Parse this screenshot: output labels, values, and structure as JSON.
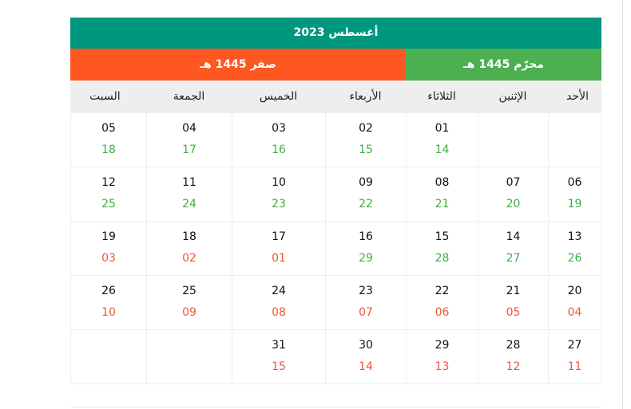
{
  "colors": {
    "title_bg": "#00977f",
    "muharram_bg": "#4caf50",
    "safar_bg": "#ff5722",
    "hijri_green": "#3fae3f",
    "hijri_red": "#e8583a"
  },
  "title": "أغسطس 2023",
  "months": [
    {
      "label": "محرّم 1445 هـ",
      "color": "green"
    },
    {
      "label": "صفر 1445 هـ",
      "color": "red"
    }
  ],
  "weekdays": [
    "الأحد",
    "الإثنين",
    "الثلاثاء",
    "الأربعاء",
    "الخميس",
    "الجمعة",
    "السبت"
  ],
  "weeks": [
    [
      null,
      null,
      {
        "g": "01",
        "h": "14",
        "c": "green"
      },
      {
        "g": "02",
        "h": "15",
        "c": "green"
      },
      {
        "g": "03",
        "h": "16",
        "c": "green"
      },
      {
        "g": "04",
        "h": "17",
        "c": "green"
      },
      {
        "g": "05",
        "h": "18",
        "c": "green"
      }
    ],
    [
      {
        "g": "06",
        "h": "19",
        "c": "green"
      },
      {
        "g": "07",
        "h": "20",
        "c": "green"
      },
      {
        "g": "08",
        "h": "21",
        "c": "green"
      },
      {
        "g": "09",
        "h": "22",
        "c": "green"
      },
      {
        "g": "10",
        "h": "23",
        "c": "green"
      },
      {
        "g": "11",
        "h": "24",
        "c": "green"
      },
      {
        "g": "12",
        "h": "25",
        "c": "green"
      }
    ],
    [
      {
        "g": "13",
        "h": "26",
        "c": "green"
      },
      {
        "g": "14",
        "h": "27",
        "c": "green"
      },
      {
        "g": "15",
        "h": "28",
        "c": "green"
      },
      {
        "g": "16",
        "h": "29",
        "c": "green"
      },
      {
        "g": "17",
        "h": "01",
        "c": "red"
      },
      {
        "g": "18",
        "h": "02",
        "c": "red"
      },
      {
        "g": "19",
        "h": "03",
        "c": "red"
      }
    ],
    [
      {
        "g": "20",
        "h": "04",
        "c": "red"
      },
      {
        "g": "21",
        "h": "05",
        "c": "red"
      },
      {
        "g": "22",
        "h": "06",
        "c": "red"
      },
      {
        "g": "23",
        "h": "07",
        "c": "red"
      },
      {
        "g": "24",
        "h": "08",
        "c": "red"
      },
      {
        "g": "25",
        "h": "09",
        "c": "red"
      },
      {
        "g": "26",
        "h": "10",
        "c": "red"
      }
    ],
    [
      {
        "g": "27",
        "h": "11",
        "c": "red"
      },
      {
        "g": "28",
        "h": "12",
        "c": "red"
      },
      {
        "g": "29",
        "h": "13",
        "c": "red"
      },
      {
        "g": "30",
        "h": "14",
        "c": "red"
      },
      {
        "g": "31",
        "h": "15",
        "c": "red"
      },
      null,
      null
    ]
  ]
}
